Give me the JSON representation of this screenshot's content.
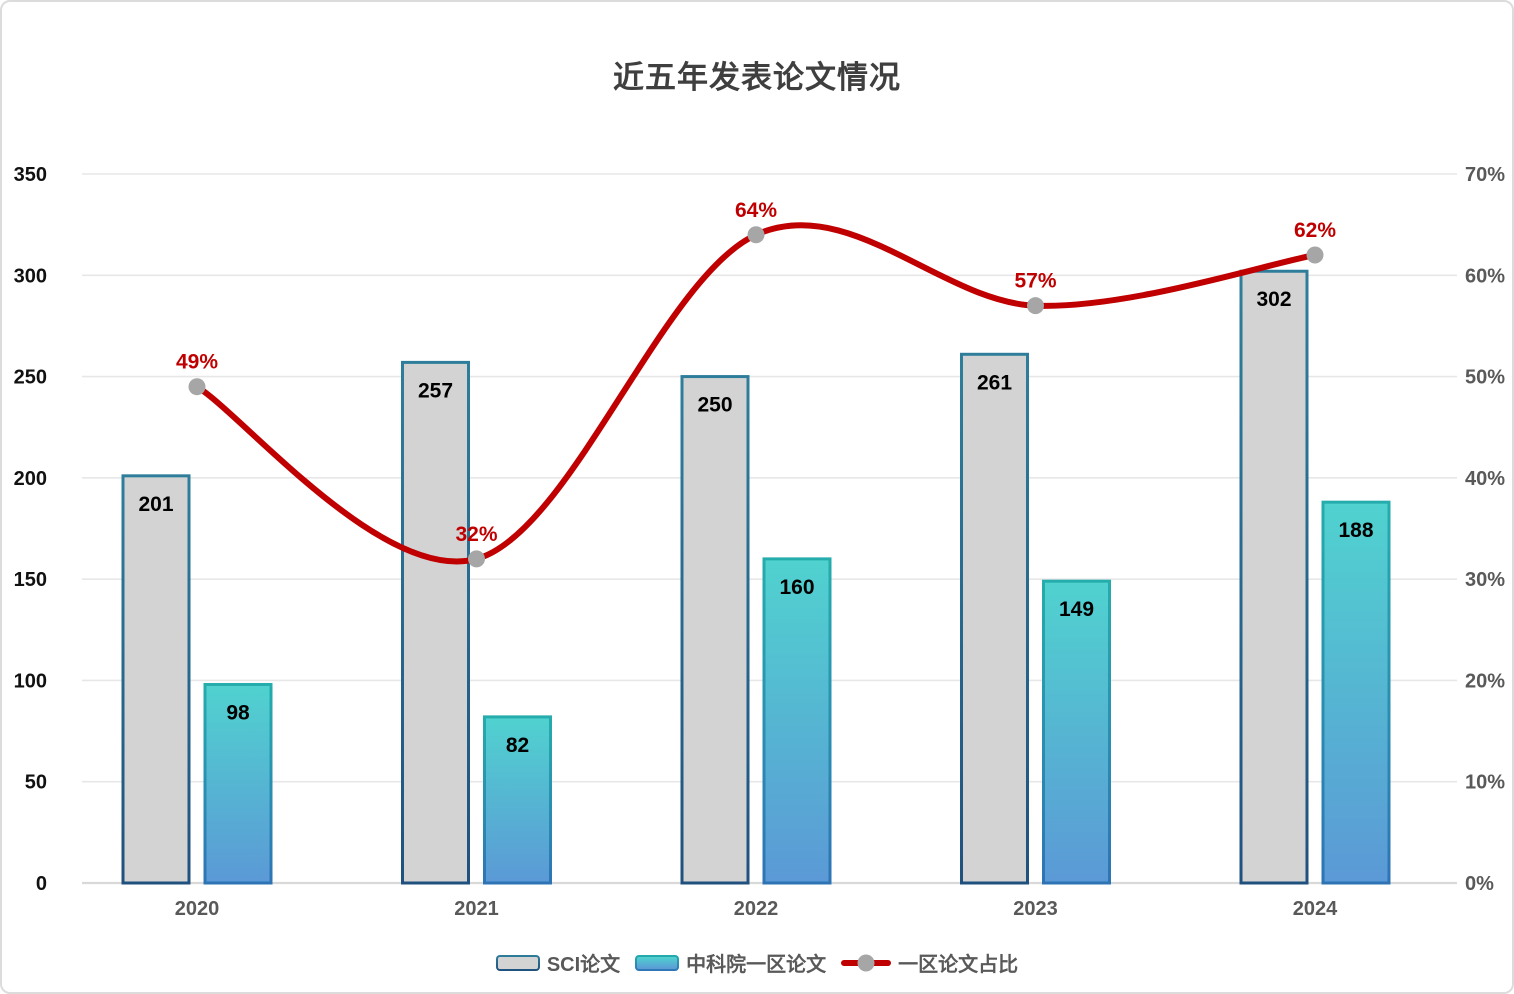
{
  "title": "近五年发表论文情况",
  "legend": {
    "items": [
      {
        "label": "SCI论文"
      },
      {
        "label": "中科院一区论文"
      },
      {
        "label": "一区论文占比"
      }
    ]
  },
  "chart_data": {
    "type": "combo",
    "title": "近五年发表论文情况",
    "categories": [
      "2020",
      "2021",
      "2022",
      "2023",
      "2024"
    ],
    "series": [
      {
        "name": "SCI论文",
        "type": "bar",
        "axis": "left",
        "values": [
          201,
          257,
          250,
          261,
          302
        ]
      },
      {
        "name": "中科院一区论文",
        "type": "bar",
        "axis": "left",
        "values": [
          98,
          82,
          160,
          149,
          188
        ]
      },
      {
        "name": "一区论文占比",
        "type": "line",
        "axis": "right",
        "values": [
          49,
          32,
          64,
          57,
          62
        ],
        "point_labels": [
          "49%",
          "32%",
          "64%",
          "57%",
          "62%"
        ]
      }
    ],
    "left_axis": {
      "min": 0,
      "max": 350,
      "step": 50,
      "tick_labels": [
        "0",
        "50",
        "100",
        "150",
        "200",
        "250",
        "300",
        "350"
      ]
    },
    "right_axis": {
      "min": 0,
      "max": 70,
      "step": 10,
      "tick_labels": [
        "0%",
        "10%",
        "20%",
        "30%",
        "40%",
        "50%",
        "60%",
        "70%"
      ]
    },
    "grid": true,
    "legend_position": "bottom"
  },
  "colors": {
    "line": "#C00000",
    "marker": "#A6A6A6",
    "bar_gray_fill": "#D3D3D3",
    "bar_border_top": "#2E7E9B",
    "bar_border_bottom": "#20517E",
    "teal_top": "#50D2CF",
    "teal_bottom": "#5B99D6",
    "teal_border_top": "#25ACAC",
    "teal_border_bottom": "#2E74B5",
    "value_label": "#000000",
    "axis_left_text": "#111111",
    "axis_right_text": "#595959",
    "year_text": "#595959",
    "title_text": "#3F3F3F",
    "legend_text": "#595959",
    "gridline": "#E7E7E7",
    "axis_line": "#D9D9D9",
    "page_border": "#DCDCDC"
  }
}
